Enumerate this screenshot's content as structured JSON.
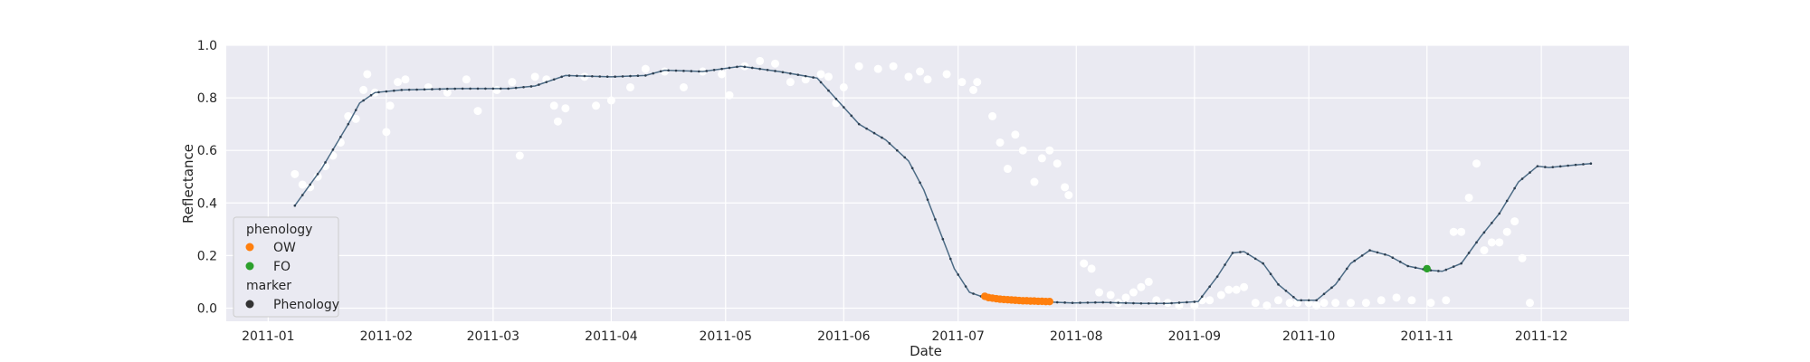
{
  "chart_data": {
    "type": "scatter",
    "xlabel": "Date",
    "ylabel": "Reflectance",
    "x_ticks": [
      "2011-01",
      "2011-02",
      "2011-03",
      "2011-04",
      "2011-05",
      "2011-06",
      "2011-07",
      "2011-08",
      "2011-09",
      "2011-10",
      "2011-11",
      "2011-12"
    ],
    "y_ticks": [
      "0.0",
      "0.2",
      "0.4",
      "0.6",
      "0.8",
      "1.0"
    ],
    "xlim": [
      "2010-12-21",
      "2011-12-24"
    ],
    "ylim": [
      -0.05,
      1.0
    ],
    "grid": true,
    "legend_placement": "lower-left",
    "legend": {
      "hue_title": "phenology",
      "hue_entries": [
        {
          "label": "OW",
          "color": "#ff7f0e"
        },
        {
          "label": "FO",
          "color": "#2ca02c"
        }
      ],
      "marker_title": "marker",
      "marker_entries": [
        {
          "label": "Phenology",
          "color": "#333333"
        }
      ]
    },
    "colors": {
      "raw_points": "#ffffff",
      "smooth_line": "#4c6b85",
      "smooth_dots": "#2c3e50",
      "OW": "#ff7f0e",
      "FO": "#2ca02c",
      "background": "#eaeaf2",
      "grid": "#ffffff"
    },
    "smoothed_series": [
      [
        "2011-01-08",
        0.39
      ],
      [
        "2011-01-15",
        0.53
      ],
      [
        "2011-01-22",
        0.7
      ],
      [
        "2011-01-25",
        0.78
      ],
      [
        "2011-01-29",
        0.82
      ],
      [
        "2011-02-05",
        0.83
      ],
      [
        "2011-02-20",
        0.835
      ],
      [
        "2011-03-05",
        0.835
      ],
      [
        "2011-03-12",
        0.845
      ],
      [
        "2011-03-20",
        0.885
      ],
      [
        "2011-04-01",
        0.88
      ],
      [
        "2011-04-10",
        0.885
      ],
      [
        "2011-04-15",
        0.905
      ],
      [
        "2011-04-25",
        0.9
      ],
      [
        "2011-05-05",
        0.92
      ],
      [
        "2011-05-15",
        0.9
      ],
      [
        "2011-05-25",
        0.875
      ],
      [
        "2011-05-31",
        0.78
      ],
      [
        "2011-06-05",
        0.7
      ],
      [
        "2011-06-12",
        0.64
      ],
      [
        "2011-06-18",
        0.56
      ],
      [
        "2011-06-22",
        0.45
      ],
      [
        "2011-06-26",
        0.3
      ],
      [
        "2011-06-30",
        0.15
      ],
      [
        "2011-07-04",
        0.06
      ],
      [
        "2011-07-08",
        0.04
      ],
      [
        "2011-07-15",
        0.03
      ],
      [
        "2011-07-22",
        0.025
      ],
      [
        "2011-07-31",
        0.02
      ],
      [
        "2011-08-08",
        0.022
      ],
      [
        "2011-08-18",
        0.018
      ],
      [
        "2011-08-25",
        0.018
      ],
      [
        "2011-09-02",
        0.025
      ],
      [
        "2011-09-07",
        0.12
      ],
      [
        "2011-09-11",
        0.21
      ],
      [
        "2011-09-14",
        0.215
      ],
      [
        "2011-09-19",
        0.17
      ],
      [
        "2011-09-23",
        0.09
      ],
      [
        "2011-09-28",
        0.03
      ],
      [
        "2011-10-03",
        0.03
      ],
      [
        "2011-10-08",
        0.09
      ],
      [
        "2011-10-12",
        0.17
      ],
      [
        "2011-10-17",
        0.22
      ],
      [
        "2011-10-22",
        0.2
      ],
      [
        "2011-10-27",
        0.16
      ],
      [
        "2011-11-01",
        0.145
      ],
      [
        "2011-11-05",
        0.14
      ],
      [
        "2011-11-10",
        0.17
      ],
      [
        "2011-11-15",
        0.27
      ],
      [
        "2011-11-20",
        0.36
      ],
      [
        "2011-11-25",
        0.48
      ],
      [
        "2011-11-30",
        0.54
      ],
      [
        "2011-12-03",
        0.535
      ],
      [
        "2011-12-10",
        0.545
      ],
      [
        "2011-12-14",
        0.55
      ]
    ],
    "raw_points": [
      [
        "2011-01-08",
        0.51
      ],
      [
        "2011-01-10",
        0.47
      ],
      [
        "2011-01-12",
        0.46
      ],
      [
        "2011-01-14",
        0.5
      ],
      [
        "2011-01-16",
        0.54
      ],
      [
        "2011-01-18",
        0.58
      ],
      [
        "2011-01-20",
        0.63
      ],
      [
        "2011-01-22",
        0.73
      ],
      [
        "2011-01-24",
        0.72
      ],
      [
        "2011-01-26",
        0.83
      ],
      [
        "2011-01-27",
        0.89
      ],
      [
        "2011-01-29",
        0.82
      ],
      [
        "2011-02-01",
        0.67
      ],
      [
        "2011-02-02",
        0.77
      ],
      [
        "2011-02-04",
        0.86
      ],
      [
        "2011-02-06",
        0.87
      ],
      [
        "2011-02-12",
        0.84
      ],
      [
        "2011-02-17",
        0.82
      ],
      [
        "2011-02-22",
        0.87
      ],
      [
        "2011-02-25",
        0.75
      ],
      [
        "2011-03-02",
        0.83
      ],
      [
        "2011-03-06",
        0.86
      ],
      [
        "2011-03-08",
        0.58
      ],
      [
        "2011-03-12",
        0.88
      ],
      [
        "2011-03-15",
        0.87
      ],
      [
        "2011-03-17",
        0.77
      ],
      [
        "2011-03-18",
        0.71
      ],
      [
        "2011-03-20",
        0.76
      ],
      [
        "2011-03-25",
        0.88
      ],
      [
        "2011-03-28",
        0.77
      ],
      [
        "2011-04-01",
        0.79
      ],
      [
        "2011-04-06",
        0.84
      ],
      [
        "2011-04-10",
        0.91
      ],
      [
        "2011-04-15",
        0.9
      ],
      [
        "2011-04-20",
        0.84
      ],
      [
        "2011-04-25",
        0.9
      ],
      [
        "2011-04-30",
        0.89
      ],
      [
        "2011-05-02",
        0.81
      ],
      [
        "2011-05-06",
        0.92
      ],
      [
        "2011-05-10",
        0.94
      ],
      [
        "2011-05-14",
        0.93
      ],
      [
        "2011-05-18",
        0.86
      ],
      [
        "2011-05-22",
        0.87
      ],
      [
        "2011-05-26",
        0.89
      ],
      [
        "2011-05-28",
        0.88
      ],
      [
        "2011-05-30",
        0.78
      ],
      [
        "2011-06-01",
        0.84
      ],
      [
        "2011-06-05",
        0.92
      ],
      [
        "2011-06-10",
        0.91
      ],
      [
        "2011-06-14",
        0.92
      ],
      [
        "2011-06-18",
        0.88
      ],
      [
        "2011-06-21",
        0.9
      ],
      [
        "2011-06-23",
        0.87
      ],
      [
        "2011-06-28",
        0.89
      ],
      [
        "2011-07-02",
        0.86
      ],
      [
        "2011-07-05",
        0.83
      ],
      [
        "2011-07-06",
        0.86
      ],
      [
        "2011-07-10",
        0.73
      ],
      [
        "2011-07-12",
        0.63
      ],
      [
        "2011-07-14",
        0.53
      ],
      [
        "2011-07-16",
        0.66
      ],
      [
        "2011-07-18",
        0.6
      ],
      [
        "2011-07-21",
        0.48
      ],
      [
        "2011-07-23",
        0.57
      ],
      [
        "2011-07-25",
        0.6
      ],
      [
        "2011-07-27",
        0.55
      ],
      [
        "2011-07-29",
        0.46
      ],
      [
        "2011-07-30",
        0.43
      ],
      [
        "2011-08-03",
        0.17
      ],
      [
        "2011-08-05",
        0.15
      ],
      [
        "2011-08-07",
        0.06
      ],
      [
        "2011-08-10",
        0.05
      ],
      [
        "2011-08-12",
        0.02
      ],
      [
        "2011-08-14",
        0.04
      ],
      [
        "2011-08-16",
        0.06
      ],
      [
        "2011-08-18",
        0.08
      ],
      [
        "2011-08-20",
        0.1
      ],
      [
        "2011-08-22",
        0.03
      ],
      [
        "2011-08-25",
        0.02
      ],
      [
        "2011-08-28",
        0.01
      ],
      [
        "2011-09-01",
        0.01
      ],
      [
        "2011-09-03",
        0.03
      ],
      [
        "2011-09-05",
        0.03
      ],
      [
        "2011-09-08",
        0.05
      ],
      [
        "2011-09-10",
        0.07
      ],
      [
        "2011-09-12",
        0.07
      ],
      [
        "2011-09-14",
        0.08
      ],
      [
        "2011-09-17",
        0.02
      ],
      [
        "2011-09-20",
        0.01
      ],
      [
        "2011-09-23",
        0.03
      ],
      [
        "2011-09-26",
        0.02
      ],
      [
        "2011-09-28",
        0.02
      ],
      [
        "2011-10-01",
        0.02
      ],
      [
        "2011-10-03",
        0.01
      ],
      [
        "2011-10-05",
        0.02
      ],
      [
        "2011-10-08",
        0.02
      ],
      [
        "2011-10-12",
        0.02
      ],
      [
        "2011-10-16",
        0.02
      ],
      [
        "2011-10-20",
        0.03
      ],
      [
        "2011-10-24",
        0.04
      ],
      [
        "2011-10-28",
        0.03
      ],
      [
        "2011-11-02",
        0.02
      ],
      [
        "2011-11-06",
        0.03
      ],
      [
        "2011-11-08",
        0.29
      ],
      [
        "2011-11-10",
        0.29
      ],
      [
        "2011-11-12",
        0.42
      ],
      [
        "2011-11-14",
        0.55
      ],
      [
        "2011-11-16",
        0.22
      ],
      [
        "2011-11-18",
        0.25
      ],
      [
        "2011-11-20",
        0.25
      ],
      [
        "2011-11-22",
        0.29
      ],
      [
        "2011-11-24",
        0.33
      ],
      [
        "2011-11-26",
        0.19
      ],
      [
        "2011-11-28",
        0.02
      ]
    ],
    "ow_points": [
      [
        "2011-07-08",
        0.045
      ],
      [
        "2011-07-09",
        0.04
      ],
      [
        "2011-07-10",
        0.038
      ],
      [
        "2011-07-11",
        0.036
      ],
      [
        "2011-07-12",
        0.034
      ],
      [
        "2011-07-13",
        0.033
      ],
      [
        "2011-07-14",
        0.032
      ],
      [
        "2011-07-15",
        0.031
      ],
      [
        "2011-07-16",
        0.03
      ],
      [
        "2011-07-17",
        0.029
      ],
      [
        "2011-07-18",
        0.028
      ],
      [
        "2011-07-19",
        0.028
      ],
      [
        "2011-07-20",
        0.027
      ],
      [
        "2011-07-21",
        0.027
      ],
      [
        "2011-07-22",
        0.026
      ],
      [
        "2011-07-23",
        0.026
      ],
      [
        "2011-07-24",
        0.025
      ],
      [
        "2011-07-25",
        0.025
      ]
    ],
    "fo_points": [
      [
        "2011-11-01",
        0.15
      ]
    ]
  }
}
